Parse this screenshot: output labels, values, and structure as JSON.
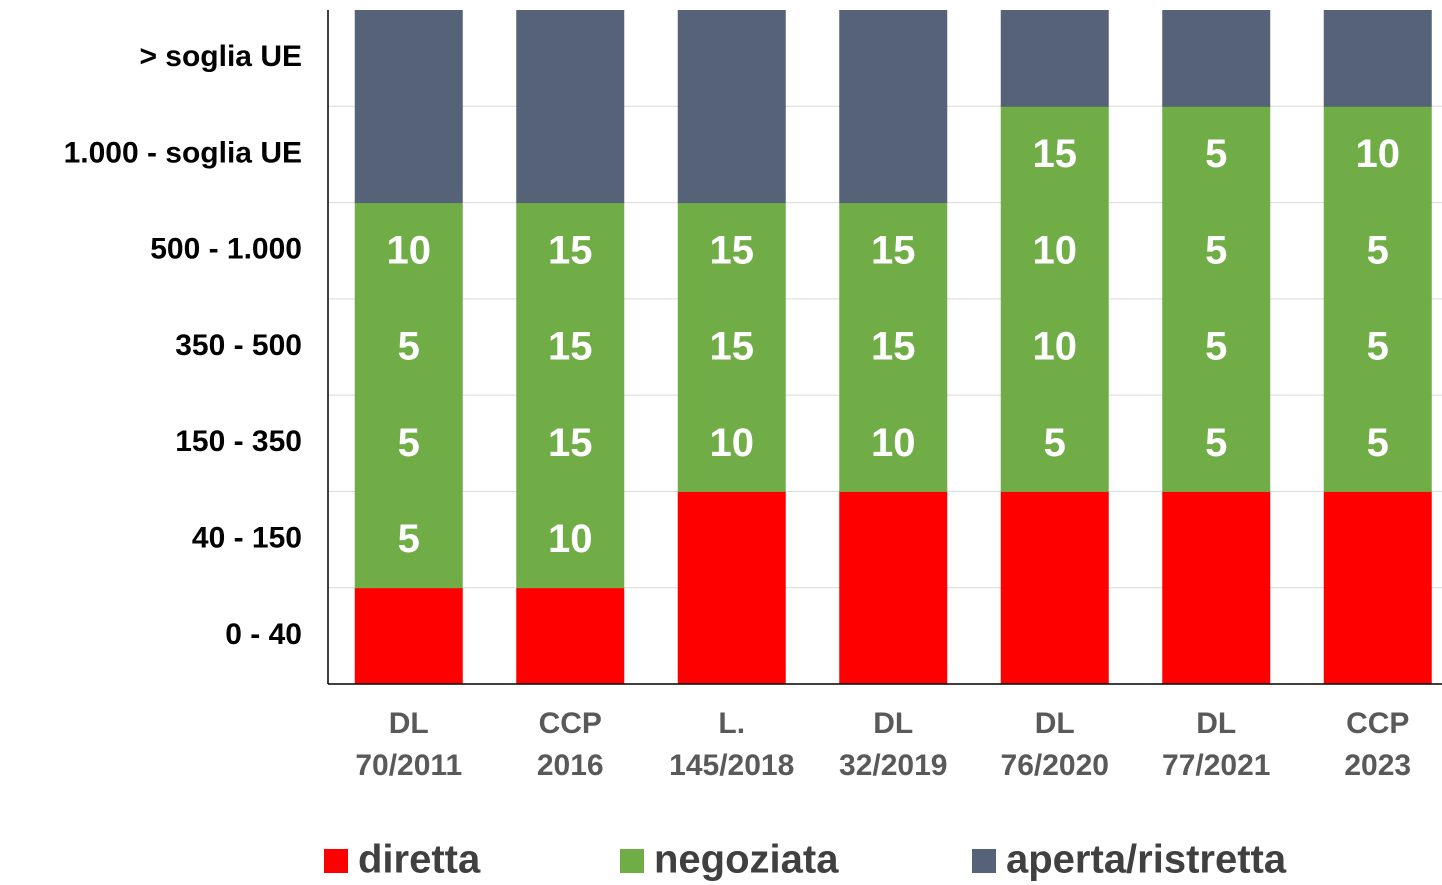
{
  "chart_data": {
    "type": "grid",
    "row_labels": [
      "0 - 40",
      "40 - 150",
      "150 - 350",
      "350 - 500",
      "500 - 1.000",
      "1.000 - soglia UE",
      "> soglia UE"
    ],
    "categories": [
      [
        "DL",
        "70/2011"
      ],
      [
        "CCP",
        "2016"
      ],
      [
        "L.",
        "145/2018"
      ],
      [
        "DL",
        "32/2019"
      ],
      [
        "DL",
        "76/2020"
      ],
      [
        "DL",
        "77/2021"
      ],
      [
        "CCP",
        "2023"
      ]
    ],
    "series": [
      {
        "name": "diretta",
        "color": "#ff0000"
      },
      {
        "name": "negoziata",
        "color": "#70ad47"
      },
      {
        "name": "aperta/ristretta",
        "color": "#556277"
      }
    ],
    "cells": [
      [
        0,
        1,
        1,
        1,
        1,
        2,
        2
      ],
      [
        0,
        1,
        1,
        1,
        1,
        2,
        2
      ],
      [
        0,
        0,
        1,
        1,
        1,
        2,
        2
      ],
      [
        0,
        0,
        1,
        1,
        1,
        2,
        2
      ],
      [
        0,
        0,
        1,
        1,
        1,
        1,
        2
      ],
      [
        0,
        0,
        1,
        1,
        1,
        1,
        2
      ],
      [
        0,
        0,
        1,
        1,
        1,
        1,
        2
      ]
    ],
    "cell_labels": [
      [
        null,
        5,
        5,
        5,
        10,
        null,
        null
      ],
      [
        null,
        10,
        15,
        15,
        15,
        null,
        null
      ],
      [
        null,
        null,
        10,
        15,
        15,
        null,
        null
      ],
      [
        null,
        null,
        10,
        15,
        15,
        null,
        null
      ],
      [
        null,
        null,
        5,
        10,
        10,
        15,
        null
      ],
      [
        null,
        null,
        5,
        5,
        5,
        5,
        null
      ],
      [
        null,
        null,
        5,
        5,
        5,
        10,
        null
      ]
    ],
    "grid": true
  }
}
